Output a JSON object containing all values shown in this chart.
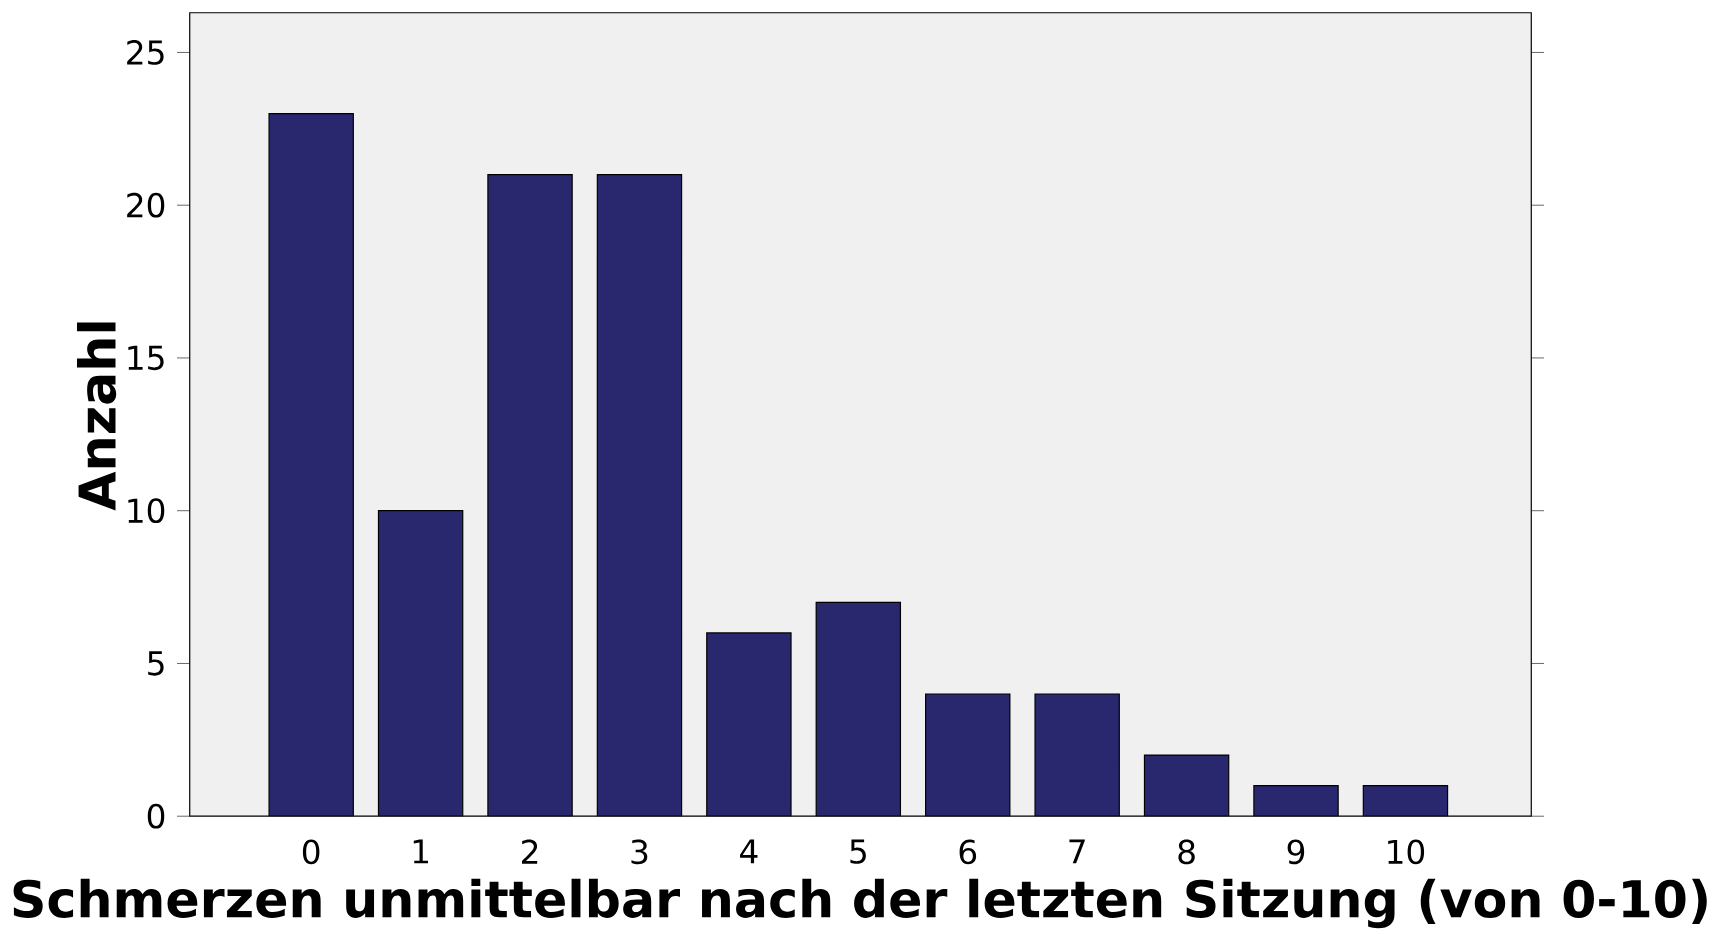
{
  "chart_data": {
    "type": "bar",
    "xlabel": "Schmerzen unmittelbar nach der letzten Sitzung (von 0-10)",
    "ylabel": "Anzahl",
    "categories": [
      "0",
      "1",
      "2",
      "3",
      "4",
      "5",
      "6",
      "7",
      "8",
      "9",
      "10"
    ],
    "values": [
      23,
      10,
      21,
      21,
      6,
      7,
      4,
      4,
      2,
      1,
      1
    ],
    "color": "#29286f",
    "ylim": [
      0,
      26.3
    ],
    "yticks": [
      0,
      5,
      10,
      15,
      20,
      25
    ],
    "grid": false
  }
}
